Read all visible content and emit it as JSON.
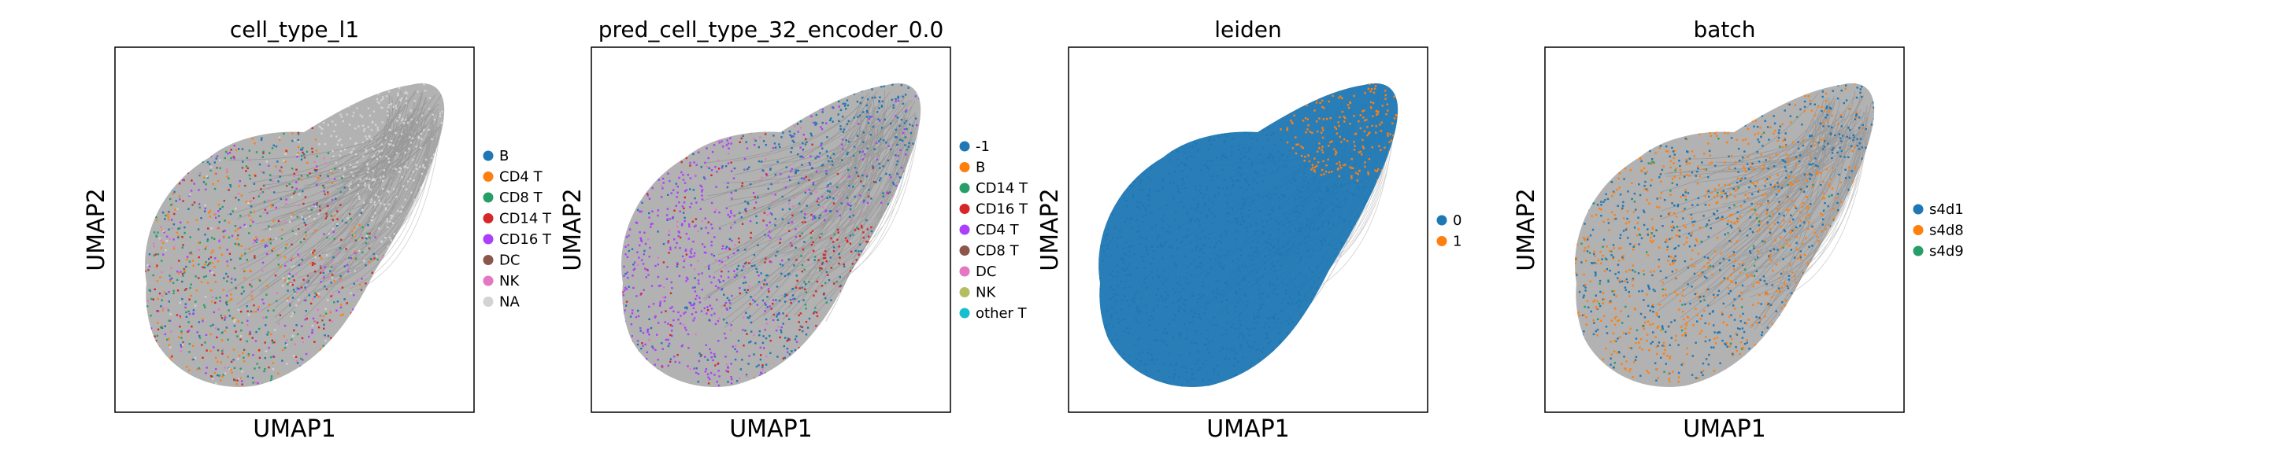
{
  "palette": {
    "tab10": [
      "#1f77b4",
      "#ff7f0e",
      "#279e68",
      "#d62728",
      "#aa40fc",
      "#8c564b",
      "#e377c2",
      "#b5bd61",
      "#17becf"
    ],
    "na": "#d3d3d3",
    "edges": "#8c8c8c"
  },
  "chart_data": [
    {
      "type": "scatter",
      "title": "cell_type_l1",
      "xlabel": "UMAP1",
      "ylabel": "UMAP2",
      "legend_position": "right",
      "grid": false,
      "categories": [
        "B",
        "CD4 T",
        "CD8 T",
        "CD14 T",
        "CD16 T",
        "DC",
        "NK",
        "NA"
      ],
      "colors": [
        "#1f77b4",
        "#ff7f0e",
        "#279e68",
        "#d62728",
        "#aa40fc",
        "#8c564b",
        "#e377c2",
        "#d3d3d3"
      ]
    },
    {
      "type": "scatter",
      "title": "pred_cell_type_32_encoder_0.0",
      "xlabel": "UMAP1",
      "ylabel": "UMAP2",
      "legend_position": "right",
      "grid": false,
      "categories": [
        "-1",
        "B",
        "CD14 T",
        "CD16 T",
        "CD4 T",
        "CD8 T",
        "DC",
        "NK",
        "other T"
      ],
      "colors": [
        "#1f77b4",
        "#ff7f0e",
        "#279e68",
        "#d62728",
        "#aa40fc",
        "#8c564b",
        "#e377c2",
        "#b5bd61",
        "#17becf"
      ]
    },
    {
      "type": "scatter",
      "title": "leiden",
      "xlabel": "UMAP1",
      "ylabel": "UMAP2",
      "legend_position": "right",
      "grid": false,
      "categories": [
        "0",
        "1"
      ],
      "colors": [
        "#1f77b4",
        "#ff7f0e"
      ]
    },
    {
      "type": "scatter",
      "title": "batch",
      "xlabel": "UMAP1",
      "ylabel": "UMAP2",
      "legend_position": "right",
      "grid": false,
      "categories": [
        "s4d1",
        "s4d8",
        "s4d9"
      ],
      "colors": [
        "#1f77b4",
        "#ff7f0e",
        "#279e68"
      ]
    }
  ]
}
